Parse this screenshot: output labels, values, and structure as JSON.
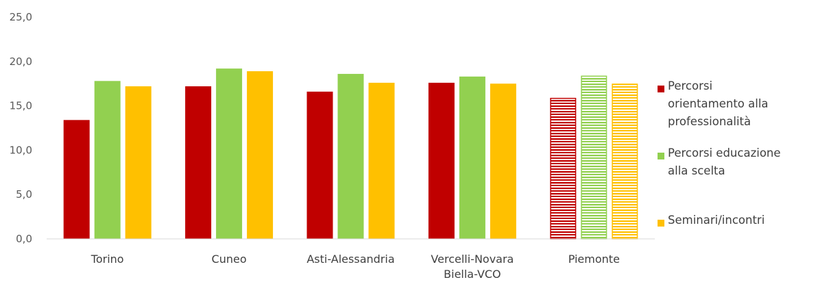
{
  "chart_data": {
    "type": "bar",
    "categories": [
      "Torino",
      "Cuneo",
      "Asti-Alessandria",
      "Vercelli-Novara\nBiella-VCO",
      "Piemonte"
    ],
    "series": [
      {
        "name": "Percorsi orientamento alla professionalità",
        "color": "#C00000",
        "values": [
          13.4,
          17.2,
          16.6,
          17.6,
          15.9
        ]
      },
      {
        "name": "Percorsi educazione alla scelta",
        "color": "#92D050",
        "values": [
          17.8,
          19.2,
          18.6,
          18.3,
          18.4
        ]
      },
      {
        "name": "Seminari/incontri",
        "color": "#FFC000",
        "values": [
          17.2,
          18.9,
          17.6,
          17.5,
          17.5
        ]
      }
    ],
    "hatched_category": "Piemonte",
    "ylim": [
      0,
      25
    ],
    "yticks": [
      "0,0",
      "5,0",
      "10,0",
      "15,0",
      "20,0",
      "25,0"
    ],
    "legend_position": "right",
    "legend_lines": [
      [
        "Percorsi",
        "orientamento alla",
        "professionalità"
      ],
      [
        "Percorsi educazione",
        "alla scelta"
      ],
      [
        "Seminari/incontri"
      ]
    ],
    "grid": false
  }
}
